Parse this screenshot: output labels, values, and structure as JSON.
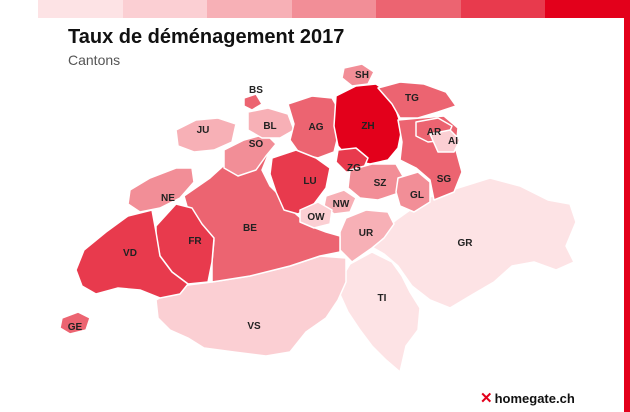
{
  "title": "Taux de déménagement 2017",
  "subtitle": "Cantons",
  "brand": "homegate.ch",
  "legend_colors": [
    "#fde3e5",
    "#fbcfd3",
    "#f7b0b6",
    "#f28e97",
    "#ec6471",
    "#e83a4d",
    "#e3001b"
  ],
  "cantons": [
    {
      "code": "SH",
      "level": 3
    },
    {
      "code": "BS",
      "level": 4
    },
    {
      "code": "TG",
      "level": 4
    },
    {
      "code": "JU",
      "level": 2
    },
    {
      "code": "BL",
      "level": 2
    },
    {
      "code": "AG",
      "level": 4
    },
    {
      "code": "ZH",
      "level": 6
    },
    {
      "code": "AR",
      "level": 4
    },
    {
      "code": "AI",
      "level": 1
    },
    {
      "code": "SO",
      "level": 3
    },
    {
      "code": "ZG",
      "level": 5
    },
    {
      "code": "LU",
      "level": 5
    },
    {
      "code": "SZ",
      "level": 3
    },
    {
      "code": "SG",
      "level": 4
    },
    {
      "code": "NE",
      "level": 3
    },
    {
      "code": "NW",
      "level": 2
    },
    {
      "code": "GL",
      "level": 3
    },
    {
      "code": "OW",
      "level": 1
    },
    {
      "code": "BE",
      "level": 4
    },
    {
      "code": "FR",
      "level": 5
    },
    {
      "code": "UR",
      "level": 2
    },
    {
      "code": "GR",
      "level": 0
    },
    {
      "code": "VD",
      "level": 5
    },
    {
      "code": "TI",
      "level": 0
    },
    {
      "code": "VS",
      "level": 1
    },
    {
      "code": "GE",
      "level": 4
    }
  ]
}
